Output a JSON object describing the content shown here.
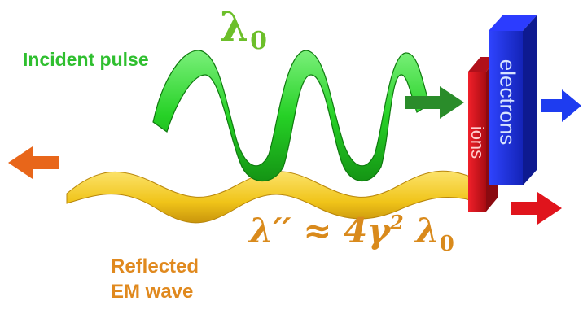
{
  "labels": {
    "incident": "Incident pulse",
    "lambda0_symbol": "λ",
    "lambda0_sub": "0",
    "formula_lhs": "λ′′ ≈ 4γ",
    "formula_sup": "2",
    "formula_mid": " λ",
    "formula_sub": "0",
    "reflected_line1": "Reflected",
    "reflected_line2": "EM wave",
    "electrons": "electrons",
    "ions": "ions"
  },
  "colors": {
    "incident_wave": "#2fd12f",
    "reflected_wave": "#f0c419",
    "electrons_block": "#1f2fd8",
    "ions_block": "#d8141c",
    "arrow_left": "#e8661a",
    "arrow_green": "#2a8c2a",
    "arrow_blue": "#1e3cf0",
    "arrow_red": "#e0141c"
  }
}
